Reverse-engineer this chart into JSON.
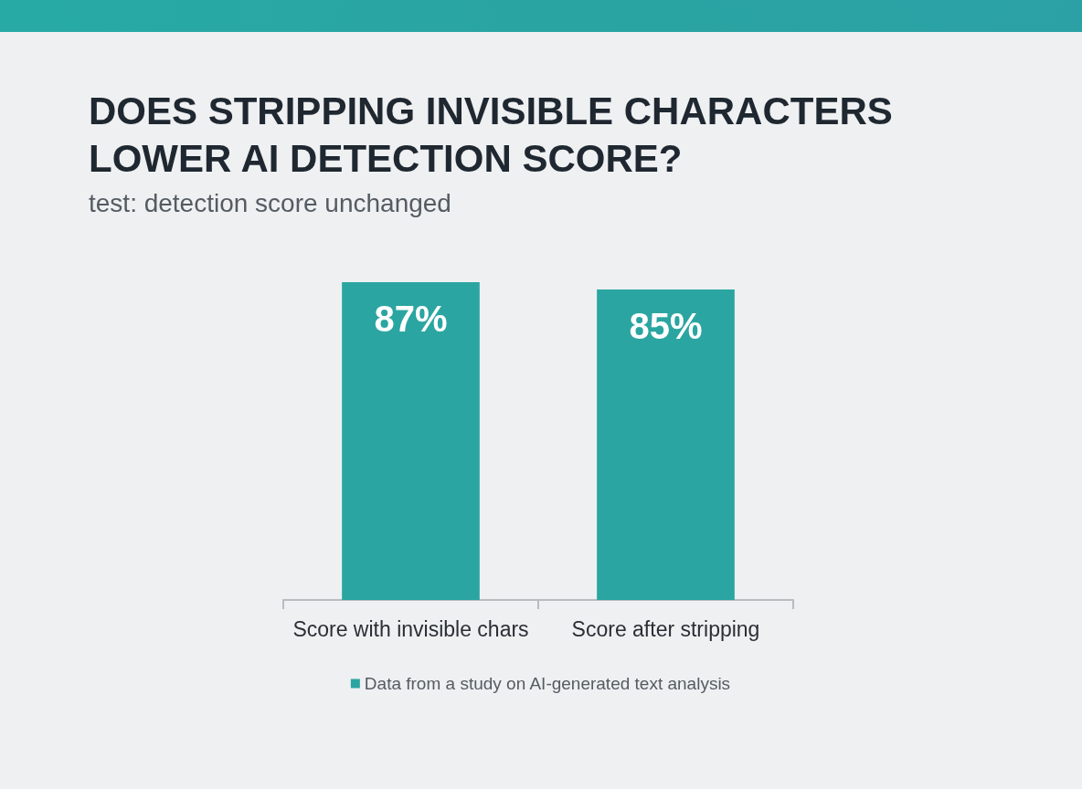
{
  "chart_data": {
    "type": "bar",
    "title": "DOES STRIPPING INVISIBLE CHARACTERS LOWER AI DETECTION SCORE?",
    "subtitle": "test: detection score unchanged",
    "categories": [
      "Score with invisible chars",
      "Score after stripping"
    ],
    "series": [
      {
        "name": "Data from a study on AI-generated text analysis",
        "color": "#2ba5a1",
        "values": [
          87,
          85
        ],
        "value_labels": [
          "87%",
          "85%"
        ]
      }
    ],
    "legend": "bottom",
    "tick_labels": "x"
  }
}
